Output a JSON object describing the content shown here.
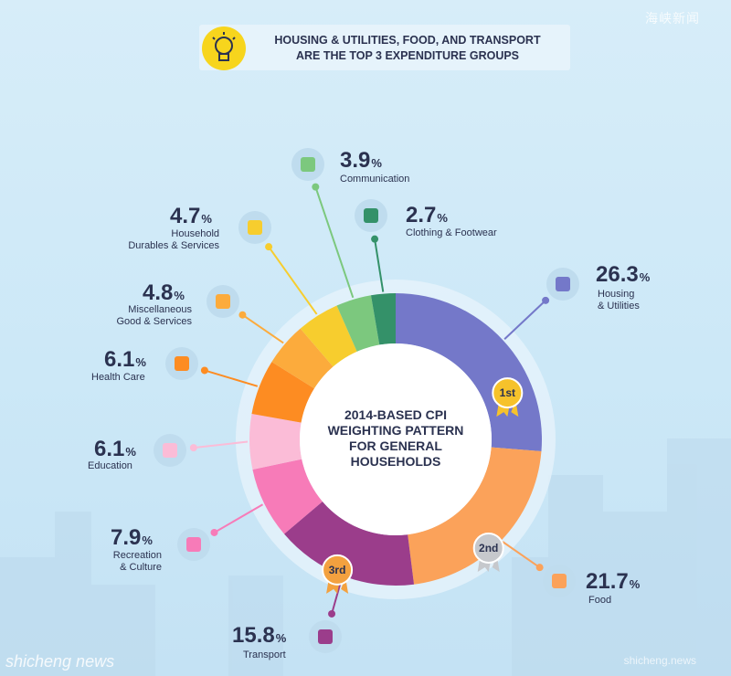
{
  "header": {
    "line1": "HOUSING & UTILITIES, FOOD, AND TRANSPORT",
    "line2": "ARE THE TOP 3 EXPENDITURE GROUPS",
    "icon": "lightbulb-icon"
  },
  "corner_mark": "海峡新闻",
  "watermark_left": "shicheng news",
  "watermark_right": "shicheng.news",
  "center": {
    "line1": "2014-BASED CPI",
    "line2": "WEIGHTING PATTERN",
    "line3": "FOR GENERAL",
    "line4": "HOUSEHOLDS"
  },
  "badges": {
    "first": "1st",
    "second": "2nd",
    "third": "3rd"
  },
  "unit_symbol": "%",
  "chart_data": {
    "type": "pie",
    "title": "2014-BASED CPI WEIGHTING PATTERN FOR GENERAL HOUSEHOLDS",
    "variant": "donut",
    "slices": [
      {
        "label": "Housing & Utilities",
        "value": 26.3,
        "color": "#7478c9",
        "icon": "building-icon"
      },
      {
        "label": "Food",
        "value": 21.7,
        "color": "#fba25a",
        "icon": "food-bowl-icon"
      },
      {
        "label": "Transport",
        "value": 15.8,
        "color": "#9b3d8b",
        "icon": "bus-icon"
      },
      {
        "label": "Recreation & Culture",
        "value": 7.9,
        "color": "#f77bb8",
        "icon": "camera-icon"
      },
      {
        "label": "Education",
        "value": 6.1,
        "color": "#fbbcd7",
        "icon": "graduation-cap-icon"
      },
      {
        "label": "Health Care",
        "value": 6.1,
        "color": "#fd8c22",
        "icon": "bandage-icon"
      },
      {
        "label": "Miscellaneous Good & Services",
        "value": 4.8,
        "color": "#fcab3c",
        "icon": "watch-icon"
      },
      {
        "label": "Household Durables & Services",
        "value": 4.7,
        "color": "#f7cd2e",
        "icon": "washing-machine-icon"
      },
      {
        "label": "Communication",
        "value": 3.9,
        "color": "#7cc87e",
        "icon": "phone-icon"
      },
      {
        "label": "Clothing & Footwear",
        "value": 2.7,
        "color": "#349169",
        "icon": "shirt-icon"
      }
    ],
    "ranked_top3": [
      "Housing & Utilities",
      "Food",
      "Transport"
    ]
  },
  "labels": [
    {
      "value": "26.3",
      "line1": "Housing",
      "line2": "& Utilities"
    },
    {
      "value": "21.7",
      "line1": "Food",
      "line2": ""
    },
    {
      "value": "15.8",
      "line1": "Transport",
      "line2": ""
    },
    {
      "value": "7.9",
      "line1": "Recreation",
      "line2": "& Culture"
    },
    {
      "value": "6.1",
      "line1": "Education",
      "line2": ""
    },
    {
      "value": "6.1",
      "line1": "Health Care",
      "line2": ""
    },
    {
      "value": "4.8",
      "line1": "Miscellaneous",
      "line2": "Good & Services"
    },
    {
      "value": "4.7",
      "line1": "Household",
      "line2": "Durables & Services"
    },
    {
      "value": "3.9",
      "line1": "Communication",
      "line2": ""
    },
    {
      "value": "2.7",
      "line1": "Clothing & Footwear",
      "line2": ""
    }
  ]
}
